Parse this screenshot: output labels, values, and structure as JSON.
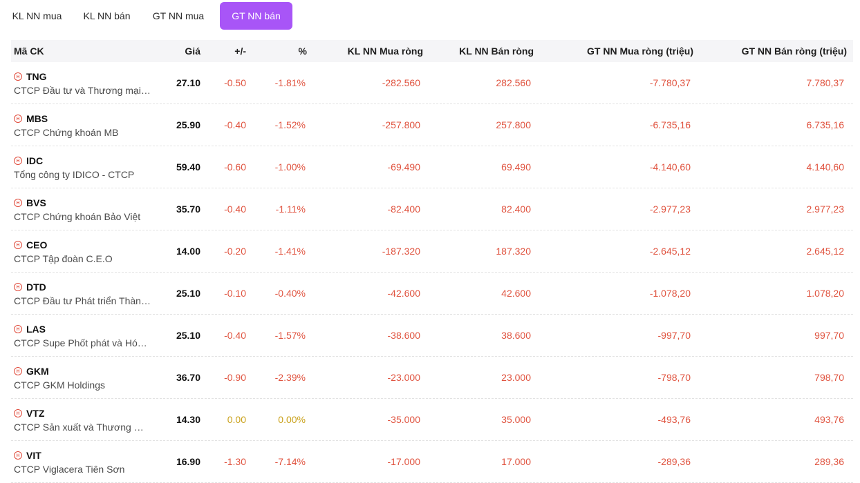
{
  "tabs": [
    {
      "label": "KL NN mua",
      "active": false
    },
    {
      "label": "KL NN bán",
      "active": false
    },
    {
      "label": "GT NN mua",
      "active": false
    },
    {
      "label": "GT NN bán",
      "active": true
    }
  ],
  "colors": {
    "accent": "#a855f7",
    "down": "#e0533f",
    "ref": "#c9a018"
  },
  "table": {
    "headers": {
      "code": "Mã CK",
      "price": "Giá",
      "change": "+/-",
      "pct": "%",
      "kl_buy": "KL NN Mua ròng",
      "kl_sell": "KL NN Bán ròng",
      "gt_buy": "GT NN Mua ròng (triệu)",
      "gt_sell": "GT NN Bán ròng (triệu)"
    },
    "rows": [
      {
        "ticker": "TNG",
        "name": "CTCP Đầu tư và Thương mại TNG",
        "price": "27.10",
        "change": "-0.50",
        "pct": "-1.81%",
        "kl_buy": "-282.560",
        "kl_sell": "282.560",
        "gt_buy": "-7.780,37",
        "gt_sell": "7.780,37",
        "status": "down"
      },
      {
        "ticker": "MBS",
        "name": "CTCP Chứng khoán MB",
        "price": "25.90",
        "change": "-0.40",
        "pct": "-1.52%",
        "kl_buy": "-257.800",
        "kl_sell": "257.800",
        "gt_buy": "-6.735,16",
        "gt_sell": "6.735,16",
        "status": "down"
      },
      {
        "ticker": "IDC",
        "name": "Tổng công ty IDICO - CTCP",
        "price": "59.40",
        "change": "-0.60",
        "pct": "-1.00%",
        "kl_buy": "-69.490",
        "kl_sell": "69.490",
        "gt_buy": "-4.140,60",
        "gt_sell": "4.140,60",
        "status": "down"
      },
      {
        "ticker": "BVS",
        "name": "CTCP Chứng khoán Bảo Việt",
        "price": "35.70",
        "change": "-0.40",
        "pct": "-1.11%",
        "kl_buy": "-82.400",
        "kl_sell": "82.400",
        "gt_buy": "-2.977,23",
        "gt_sell": "2.977,23",
        "status": "down"
      },
      {
        "ticker": "CEO",
        "name": "CTCP Tập đoàn C.E.O",
        "price": "14.00",
        "change": "-0.20",
        "pct": "-1.41%",
        "kl_buy": "-187.320",
        "kl_sell": "187.320",
        "gt_buy": "-2.645,12",
        "gt_sell": "2.645,12",
        "status": "down"
      },
      {
        "ticker": "DTD",
        "name": "CTCP Đầu tư Phát triển Thành Đạt",
        "price": "25.10",
        "change": "-0.10",
        "pct": "-0.40%",
        "kl_buy": "-42.600",
        "kl_sell": "42.600",
        "gt_buy": "-1.078,20",
        "gt_sell": "1.078,20",
        "status": "down"
      },
      {
        "ticker": "LAS",
        "name": "CTCP Supe Phốt phát và Hóa chất Lâm Thao",
        "price": "25.10",
        "change": "-0.40",
        "pct": "-1.57%",
        "kl_buy": "-38.600",
        "kl_sell": "38.600",
        "gt_buy": "-997,70",
        "gt_sell": "997,70",
        "status": "down"
      },
      {
        "ticker": "GKM",
        "name": "CTCP GKM Holdings",
        "price": "36.70",
        "change": "-0.90",
        "pct": "-2.39%",
        "kl_buy": "-23.000",
        "kl_sell": "23.000",
        "gt_buy": "-798,70",
        "gt_sell": "798,70",
        "status": "down"
      },
      {
        "ticker": "VTZ",
        "name": "CTCP Sản xuất và Thương mại Nhựa Việt Thành",
        "price": "14.30",
        "change": "0.00",
        "pct": "0.00%",
        "kl_buy": "-35.000",
        "kl_sell": "35.000",
        "gt_buy": "-493,76",
        "gt_sell": "493,76",
        "status": "ref"
      },
      {
        "ticker": "VIT",
        "name": "CTCP Viglacera Tiên Sơn",
        "price": "16.90",
        "change": "-1.30",
        "pct": "-7.14%",
        "kl_buy": "-17.000",
        "kl_sell": "17.000",
        "gt_buy": "-289,36",
        "gt_sell": "289,36",
        "status": "down"
      }
    ]
  }
}
